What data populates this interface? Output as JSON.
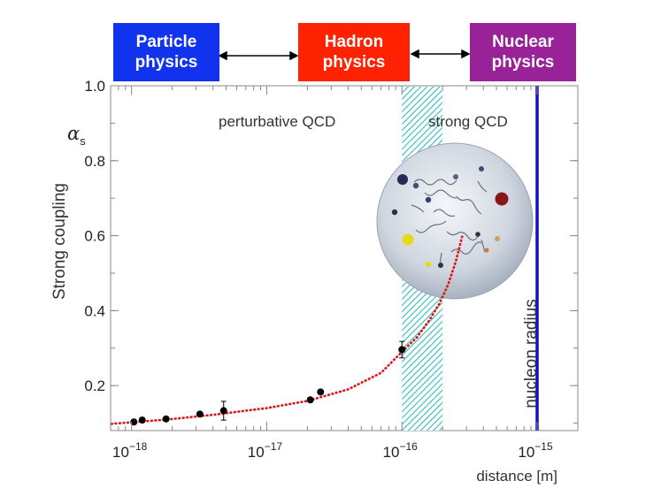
{
  "header": {
    "boxes": [
      {
        "line1": "Particle",
        "line2": "physics",
        "color": "#1133ee"
      },
      {
        "line1": "Hadron",
        "line2": "physics",
        "color": "#ff2200"
      },
      {
        "line1": "Nuclear",
        "line2": "physics",
        "color": "#992299"
      }
    ]
  },
  "chart_data": {
    "type": "line",
    "title": "",
    "xlabel": "distance [m]",
    "ylabel": "Strong coupling",
    "ysymbol": "α",
    "ysymbol_sub": "s",
    "xscale": "log",
    "xlim": [
      7e-19,
      2e-15
    ],
    "ylim": [
      0.08,
      1.0
    ],
    "y_ticks": [
      {
        "value": 0.2,
        "label": "0.2"
      },
      {
        "value": 0.4,
        "label": "0.4"
      },
      {
        "value": 0.6,
        "label": "0.6"
      },
      {
        "value": 0.8,
        "label": "0.8"
      },
      {
        "value": 1.0,
        "label": "1.0"
      }
    ],
    "x_ticks": [
      {
        "value": 1e-18,
        "base": "10",
        "exp": "−18"
      },
      {
        "value": 1e-17,
        "base": "10",
        "exp": "−17"
      },
      {
        "value": 1e-16,
        "base": "10",
        "exp": "−16"
      },
      {
        "value": 1e-15,
        "base": "10",
        "exp": "−15"
      }
    ],
    "curve": {
      "color": "#dd1111",
      "x": [
        7e-19,
        1e-18,
        2e-18,
        4e-18,
        7e-18,
        1e-17,
        2e-17,
        4e-17,
        7e-17,
        1e-16,
        1.3e-16,
        1.6e-16,
        1.9e-16,
        2.2e-16,
        2.5e-16,
        2.8e-16
      ],
      "y": [
        0.098,
        0.102,
        0.111,
        0.122,
        0.133,
        0.14,
        0.159,
        0.19,
        0.234,
        0.29,
        0.33,
        0.375,
        0.42,
        0.47,
        0.53,
        0.6
      ]
    },
    "points": {
      "color": "#000000",
      "x": [
        1.04e-18,
        1.2e-18,
        1.8e-18,
        3.2e-18,
        4.8e-18,
        2.1e-17,
        2.5e-17,
        1e-16
      ],
      "y": [
        0.103,
        0.108,
        0.111,
        0.124,
        0.133,
        0.162,
        0.183,
        0.296
      ],
      "err": [
        0,
        0,
        0,
        0,
        0.025,
        0,
        0,
        0.022
      ]
    },
    "band": {
      "x_from": 1e-16,
      "x_to": 2e-16,
      "color": "#33bbbb"
    },
    "nucleon_line": {
      "x": 1e-15,
      "label": "nucleon radius",
      "color": "#1111cc"
    },
    "annotations": {
      "left": "perturbative QCD",
      "right": "strong QCD"
    }
  }
}
